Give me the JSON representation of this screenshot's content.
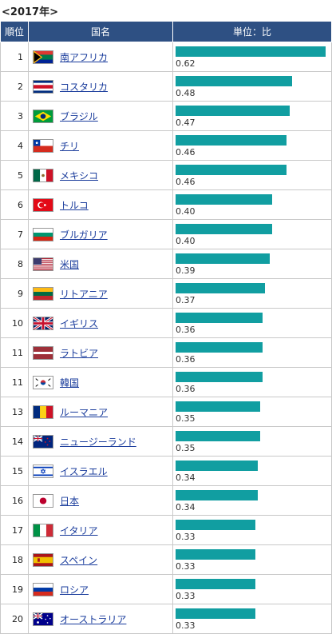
{
  "caption": "<2017年>",
  "headers": {
    "rank": "順位",
    "country": "国名",
    "unit": "単位：比"
  },
  "rows": [
    {
      "rank": "1",
      "country": "南アフリカ",
      "value": "0.62",
      "flag": "za"
    },
    {
      "rank": "2",
      "country": "コスタリカ",
      "value": "0.48",
      "flag": "cr"
    },
    {
      "rank": "3",
      "country": "ブラジル",
      "value": "0.47",
      "flag": "br"
    },
    {
      "rank": "4",
      "country": "チリ",
      "value": "0.46",
      "flag": "cl"
    },
    {
      "rank": "5",
      "country": "メキシコ",
      "value": "0.46",
      "flag": "mx"
    },
    {
      "rank": "6",
      "country": "トルコ",
      "value": "0.40",
      "flag": "tr"
    },
    {
      "rank": "7",
      "country": "ブルガリア",
      "value": "0.40",
      "flag": "bg"
    },
    {
      "rank": "8",
      "country": "米国",
      "value": "0.39",
      "flag": "us"
    },
    {
      "rank": "9",
      "country": "リトアニア",
      "value": "0.37",
      "flag": "lt"
    },
    {
      "rank": "10",
      "country": "イギリス",
      "value": "0.36",
      "flag": "gb"
    },
    {
      "rank": "11",
      "country": "ラトビア",
      "value": "0.36",
      "flag": "lv"
    },
    {
      "rank": "11",
      "country": "韓国",
      "value": "0.36",
      "flag": "kr"
    },
    {
      "rank": "13",
      "country": "ルーマニア",
      "value": "0.35",
      "flag": "ro"
    },
    {
      "rank": "14",
      "country": "ニュージーランド",
      "value": "0.35",
      "flag": "nz"
    },
    {
      "rank": "15",
      "country": "イスラエル",
      "value": "0.34",
      "flag": "il"
    },
    {
      "rank": "16",
      "country": "日本",
      "value": "0.34",
      "flag": "jp"
    },
    {
      "rank": "17",
      "country": "イタリア",
      "value": "0.33",
      "flag": "it"
    },
    {
      "rank": "18",
      "country": "スペイン",
      "value": "0.33",
      "flag": "es"
    },
    {
      "rank": "19",
      "country": "ロシア",
      "value": "0.33",
      "flag": "ru"
    },
    {
      "rank": "20",
      "country": "オーストラリア",
      "value": "0.33",
      "flag": "au"
    }
  ],
  "chart_data": {
    "type": "bar",
    "categories": [
      "南アフリカ",
      "コスタリカ",
      "ブラジル",
      "チリ",
      "メキシコ",
      "トルコ",
      "ブルガリア",
      "米国",
      "リトアニア",
      "イギリス",
      "ラトビア",
      "韓国",
      "ルーマニア",
      "ニュージーランド",
      "イスラエル",
      "日本",
      "イタリア",
      "スペイン",
      "ロシア",
      "オーストラリア"
    ],
    "values": [
      0.62,
      0.48,
      0.47,
      0.46,
      0.46,
      0.4,
      0.4,
      0.39,
      0.37,
      0.36,
      0.36,
      0.36,
      0.35,
      0.35,
      0.34,
      0.34,
      0.33,
      0.33,
      0.33,
      0.33
    ],
    "xlim": [
      0,
      0.62
    ]
  },
  "colors": {
    "header": "#2e5083",
    "bar": "#119ea1",
    "link": "#1a3c9c"
  }
}
